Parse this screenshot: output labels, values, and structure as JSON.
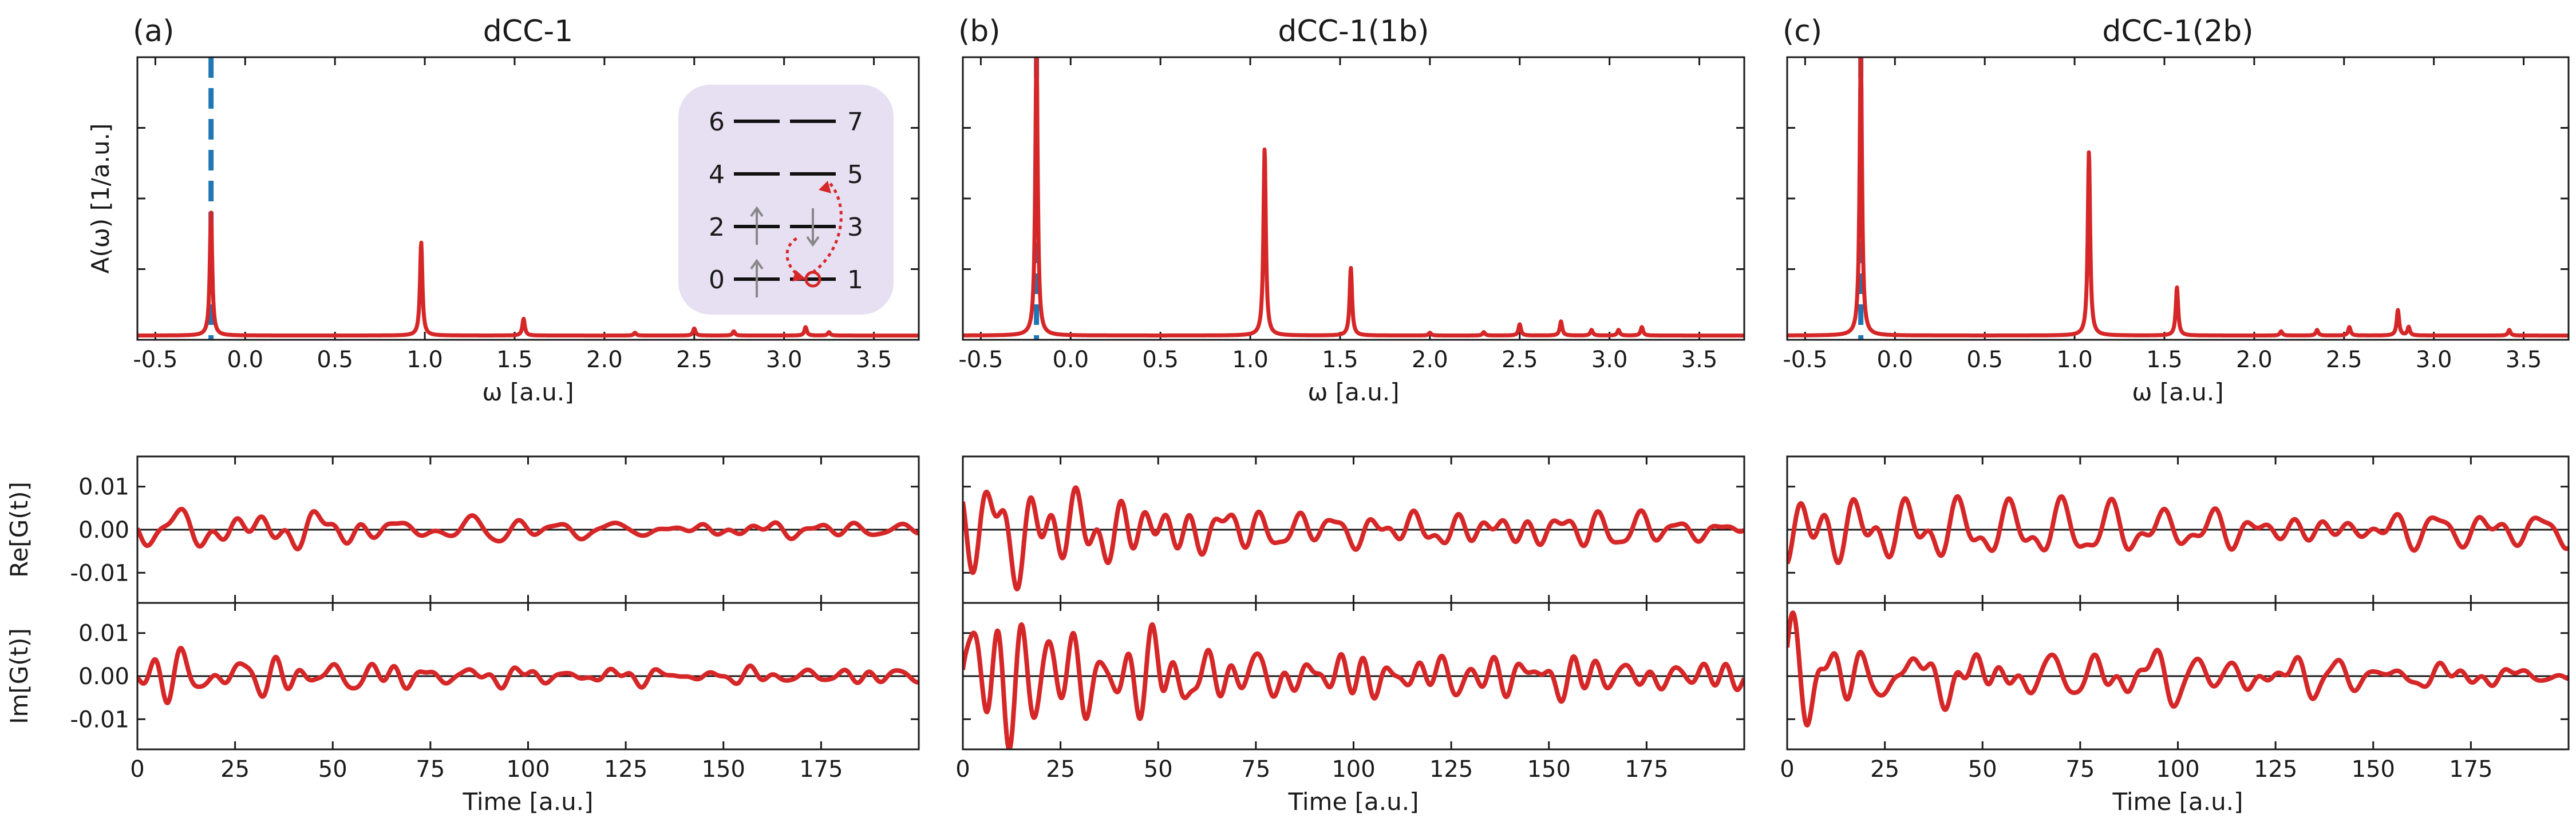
{
  "chart_data": [
    {
      "id": "a",
      "type": "line",
      "letter": "(a)",
      "title": "dCC-1",
      "xlabel": "ω [a.u.]",
      "ylabel": "A(ω) [1/a.u.]",
      "xlim": [
        -0.6,
        3.75
      ],
      "ylim": [
        0,
        1.0
      ],
      "xticks": [
        -0.5,
        0.0,
        0.5,
        1.0,
        1.5,
        2.0,
        2.5,
        3.0,
        3.5
      ],
      "xticklabels": [
        "-0.5",
        "0.0",
        "0.5",
        "1.0",
        "1.5",
        "2.0",
        "2.5",
        "3.0",
        "3.5"
      ],
      "yticks": [
        0.0,
        0.25,
        0.5,
        0.75,
        1.0
      ],
      "reference_line": {
        "x": -0.19,
        "color": "#1f77b4",
        "style": "dashed"
      },
      "series": [
        {
          "name": "A(ω)",
          "color": "#d62728",
          "baseline": 0.015,
          "gamma": 0.008,
          "peaks": [
            [
              -0.19,
              0.44
            ],
            [
              0.98,
              0.33
            ],
            [
              1.55,
              0.06
            ],
            [
              2.17,
              0.01
            ],
            [
              2.5,
              0.025
            ],
            [
              2.72,
              0.015
            ],
            [
              3.12,
              0.03
            ],
            [
              3.25,
              0.012
            ]
          ]
        }
      ],
      "inset": {
        "levels": [
          {
            "left": "6",
            "right": "7"
          },
          {
            "left": "4",
            "right": "5"
          },
          {
            "left": "2",
            "right": "3"
          },
          {
            "left": "0",
            "right": "1"
          }
        ],
        "electrons": [
          "up",
          "down",
          "up"
        ],
        "hole_level": "1",
        "excitation_from": "1",
        "excitation_to": "5"
      }
    },
    {
      "id": "b",
      "type": "line",
      "letter": "(b)",
      "title": "dCC-1(1b)",
      "xlabel": "ω [a.u.]",
      "ylabel": "",
      "xlim": [
        -0.6,
        3.75
      ],
      "ylim": [
        0,
        1.0
      ],
      "xticks": [
        -0.5,
        0.0,
        0.5,
        1.0,
        1.5,
        2.0,
        2.5,
        3.0,
        3.5
      ],
      "xticklabels": [
        "-0.5",
        "0.0",
        "0.5",
        "1.0",
        "1.5",
        "2.0",
        "2.5",
        "3.0",
        "3.5"
      ],
      "yticks": [
        0.0,
        0.25,
        0.5,
        0.75,
        1.0
      ],
      "reference_line": {
        "x": -0.19,
        "color": "#1f77b4",
        "style": "dashed"
      },
      "series": [
        {
          "name": "A(ω)",
          "color": "#d62728",
          "baseline": 0.015,
          "gamma": 0.008,
          "peaks": [
            [
              -0.19,
              1.02
            ],
            [
              1.08,
              0.66
            ],
            [
              1.56,
              0.24
            ],
            [
              2.0,
              0.01
            ],
            [
              2.3,
              0.012
            ],
            [
              2.5,
              0.04
            ],
            [
              2.73,
              0.05
            ],
            [
              2.9,
              0.02
            ],
            [
              3.05,
              0.02
            ],
            [
              3.18,
              0.03
            ]
          ]
        }
      ]
    },
    {
      "id": "c",
      "type": "line",
      "letter": "(c)",
      "title": "dCC-1(2b)",
      "xlabel": "ω [a.u.]",
      "ylabel": "",
      "xlim": [
        -0.6,
        3.75
      ],
      "ylim": [
        0,
        1.0
      ],
      "xticks": [
        -0.5,
        0.0,
        0.5,
        1.0,
        1.5,
        2.0,
        2.5,
        3.0,
        3.5
      ],
      "xticklabels": [
        "-0.5",
        "0.0",
        "0.5",
        "1.0",
        "1.5",
        "2.0",
        "2.5",
        "3.0",
        "3.5"
      ],
      "yticks": [
        0.0,
        0.25,
        0.5,
        0.75,
        1.0
      ],
      "reference_line": {
        "x": -0.19,
        "color": "#1f77b4",
        "style": "dashed"
      },
      "series": [
        {
          "name": "A(ω)",
          "color": "#d62728",
          "baseline": 0.015,
          "gamma": 0.008,
          "peaks": [
            [
              -0.19,
              1.02
            ],
            [
              1.08,
              0.65
            ],
            [
              1.57,
              0.17
            ],
            [
              2.15,
              0.015
            ],
            [
              2.35,
              0.02
            ],
            [
              2.53,
              0.03
            ],
            [
              2.8,
              0.09
            ],
            [
              2.86,
              0.03
            ],
            [
              3.42,
              0.02
            ]
          ]
        }
      ]
    },
    {
      "id": "a-re",
      "type": "line",
      "title": "",
      "xlabel": "",
      "ylabel": "Re[G(t)]",
      "xlim": [
        0,
        200
      ],
      "ylim": [
        -0.017,
        0.017
      ],
      "xticks": [
        0,
        25,
        50,
        75,
        100,
        125,
        150,
        175
      ],
      "yticks": [
        -0.01,
        0.0,
        0.01
      ],
      "yticklabels": [
        "-0.01",
        "0.00",
        "0.01"
      ],
      "series": [
        {
          "name": "Re[G(t)]",
          "color": "#d62728",
          "amplitude": 0.0055,
          "decay": 70,
          "seed": 11
        }
      ]
    },
    {
      "id": "a-im",
      "type": "line",
      "title": "",
      "xlabel": "Time [a.u.]",
      "ylabel": "Im[G(t)]",
      "xlim": [
        0,
        200
      ],
      "ylim": [
        -0.017,
        0.017
      ],
      "xticks": [
        0,
        25,
        50,
        75,
        100,
        125,
        150,
        175
      ],
      "xticklabels": [
        "0",
        "25",
        "50",
        "75",
        "100",
        "125",
        "150",
        "175"
      ],
      "yticks": [
        -0.01,
        0.0,
        0.01
      ],
      "yticklabels": [
        "-0.01",
        "0.00",
        "0.01"
      ],
      "series": [
        {
          "name": "Im[G(t)]",
          "color": "#d62728",
          "amplitude": 0.0055,
          "decay": 70,
          "seed": 23
        }
      ]
    },
    {
      "id": "b-re",
      "type": "line",
      "title": "",
      "xlabel": "",
      "ylabel": "",
      "xlim": [
        0,
        200
      ],
      "ylim": [
        -0.017,
        0.017
      ],
      "xticks": [
        0,
        25,
        50,
        75,
        100,
        125,
        150,
        175
      ],
      "yticks": [
        -0.01,
        0.0,
        0.01
      ],
      "series": [
        {
          "name": "Re[G(t)]",
          "color": "#d62728",
          "amplitude": 0.0125,
          "decay": 60,
          "seed": 37
        }
      ]
    },
    {
      "id": "b-im",
      "type": "line",
      "title": "",
      "xlabel": "Time [a.u.]",
      "ylabel": "",
      "xlim": [
        0,
        200
      ],
      "ylim": [
        -0.017,
        0.017
      ],
      "xticks": [
        0,
        25,
        50,
        75,
        100,
        125,
        150,
        175
      ],
      "xticklabels": [
        "0",
        "25",
        "50",
        "75",
        "100",
        "125",
        "150",
        "175"
      ],
      "yticks": [
        -0.01,
        0.0,
        0.01
      ],
      "series": [
        {
          "name": "Im[G(t)]",
          "color": "#d62728",
          "amplitude": 0.0125,
          "decay": 60,
          "seed": 41
        }
      ]
    },
    {
      "id": "c-re",
      "type": "line",
      "title": "",
      "xlabel": "",
      "ylabel": "",
      "xlim": [
        0,
        200
      ],
      "ylim": [
        -0.017,
        0.017
      ],
      "xticks": [
        0,
        25,
        50,
        75,
        100,
        125,
        150,
        175
      ],
      "yticks": [
        -0.01,
        0.0,
        0.01
      ],
      "series": [
        {
          "name": "Re[G(t)]",
          "color": "#d62728",
          "amplitude": 0.0125,
          "decay": 60,
          "seed": 53
        }
      ]
    },
    {
      "id": "c-im",
      "type": "line",
      "title": "",
      "xlabel": "Time [a.u.]",
      "ylabel": "",
      "xlim": [
        0,
        200
      ],
      "ylim": [
        -0.017,
        0.017
      ],
      "xticks": [
        0,
        25,
        50,
        75,
        100,
        125,
        150,
        175
      ],
      "xticklabels": [
        "0",
        "25",
        "50",
        "75",
        "100",
        "125",
        "150",
        "175"
      ],
      "yticks": [
        -0.01,
        0.0,
        0.01
      ],
      "series": [
        {
          "name": "Im[G(t)]",
          "color": "#d62728",
          "amplitude": 0.0125,
          "decay": 60,
          "seed": 67
        }
      ]
    }
  ]
}
